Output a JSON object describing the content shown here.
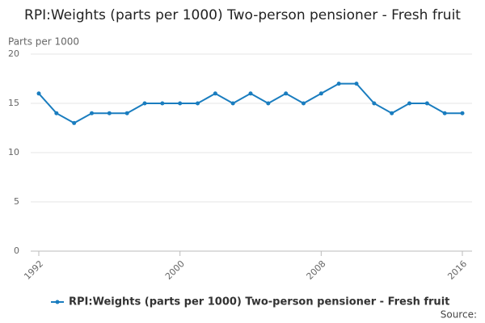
{
  "chart_data": {
    "type": "line",
    "title": "RPI:Weights (parts per 1000) Two-person pensioner - Fresh fruit",
    "y_label": "Parts per 1000",
    "source": "Source:",
    "x": [
      1992,
      1993,
      1994,
      1995,
      1996,
      1997,
      1998,
      1999,
      2000,
      2001,
      2002,
      2003,
      2004,
      2005,
      2006,
      2007,
      2008,
      2009,
      2010,
      2011,
      2012,
      2013,
      2014,
      2015,
      2016
    ],
    "series": [
      {
        "name": "RPI:Weights (parts per 1000) Two-person pensioner - Fresh fruit",
        "color": "#1a7dbf",
        "values": [
          16,
          14,
          13,
          14,
          14,
          14,
          15,
          15,
          15,
          15,
          16,
          15,
          16,
          15,
          16,
          15,
          16,
          17,
          17,
          15,
          14,
          15,
          15,
          14,
          14
        ]
      }
    ],
    "xlim": [
      1992,
      2016
    ],
    "xticks": [
      1992,
      2000,
      2008,
      2016
    ],
    "ylim": [
      0,
      20
    ],
    "yticks": [
      0,
      5,
      10,
      15,
      20
    ],
    "grid": true
  }
}
